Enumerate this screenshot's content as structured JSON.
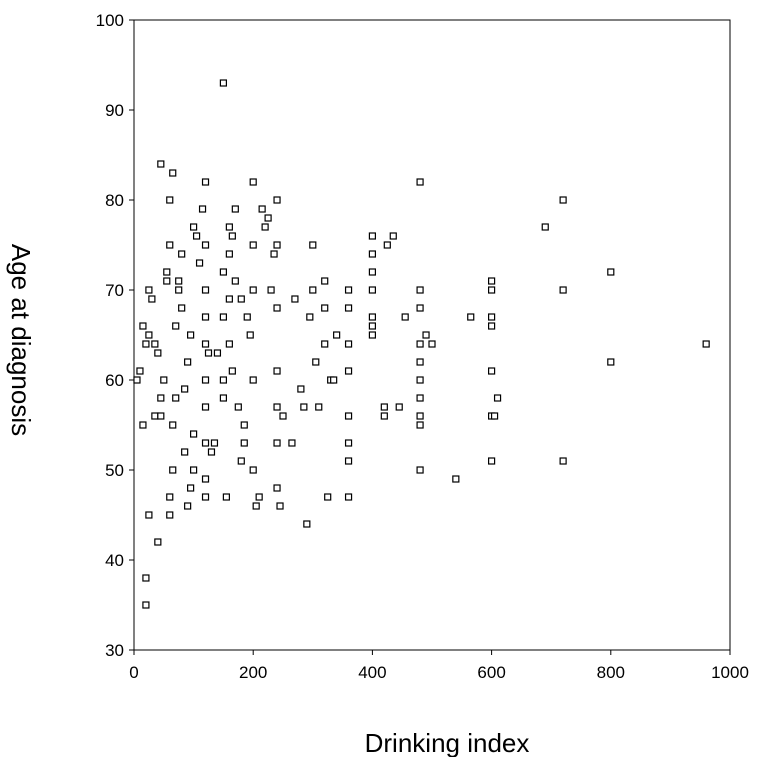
{
  "chart_data": {
    "type": "scatter",
    "title": "",
    "xlabel": "Drinking index",
    "ylabel": "Age at diagnosis",
    "xlim": [
      0,
      1000
    ],
    "ylim": [
      30,
      100
    ],
    "xticks": [
      "0",
      "200",
      "400",
      "600",
      "800",
      "1000"
    ],
    "yticks": [
      "30",
      "40",
      "50",
      "60",
      "70",
      "80",
      "90",
      "100"
    ],
    "grid": false,
    "marker": "hollow-square",
    "marker_color": "#000000",
    "points": [
      [
        20,
        35
      ],
      [
        20,
        38
      ],
      [
        25,
        45
      ],
      [
        40,
        42
      ],
      [
        45,
        84
      ],
      [
        65,
        83
      ],
      [
        60,
        80
      ],
      [
        10,
        61
      ],
      [
        15,
        66
      ],
      [
        20,
        64
      ],
      [
        25,
        70
      ],
      [
        30,
        69
      ],
      [
        35,
        56
      ],
      [
        40,
        63
      ],
      [
        45,
        58
      ],
      [
        50,
        60
      ],
      [
        55,
        72
      ],
      [
        60,
        75
      ],
      [
        65,
        55
      ],
      [
        70,
        66
      ],
      [
        75,
        71
      ],
      [
        80,
        68
      ],
      [
        85,
        59
      ],
      [
        90,
        62
      ],
      [
        95,
        48
      ],
      [
        100,
        50
      ],
      [
        5,
        60
      ],
      [
        15,
        55
      ],
      [
        25,
        65
      ],
      [
        35,
        64
      ],
      [
        45,
        56
      ],
      [
        55,
        71
      ],
      [
        65,
        50
      ],
      [
        75,
        70
      ],
      [
        85,
        52
      ],
      [
        95,
        65
      ],
      [
        100,
        77
      ],
      [
        60,
        45
      ],
      [
        60,
        47
      ],
      [
        70,
        58
      ],
      [
        80,
        74
      ],
      [
        90,
        46
      ],
      [
        100,
        54
      ],
      [
        105,
        76
      ],
      [
        110,
        73
      ],
      [
        115,
        79
      ],
      [
        120,
        82
      ],
      [
        120,
        75
      ],
      [
        120,
        70
      ],
      [
        120,
        67
      ],
      [
        120,
        64
      ],
      [
        120,
        60
      ],
      [
        120,
        57
      ],
      [
        120,
        53
      ],
      [
        120,
        49
      ],
      [
        120,
        47
      ],
      [
        125,
        63
      ],
      [
        130,
        52
      ],
      [
        135,
        53
      ],
      [
        140,
        63
      ],
      [
        150,
        93
      ],
      [
        150,
        72
      ],
      [
        150,
        67
      ],
      [
        150,
        60
      ],
      [
        150,
        58
      ],
      [
        155,
        47
      ],
      [
        160,
        77
      ],
      [
        160,
        74
      ],
      [
        160,
        69
      ],
      [
        160,
        64
      ],
      [
        165,
        76
      ],
      [
        165,
        61
      ],
      [
        170,
        79
      ],
      [
        170,
        71
      ],
      [
        175,
        57
      ],
      [
        180,
        69
      ],
      [
        180,
        51
      ],
      [
        185,
        55
      ],
      [
        185,
        53
      ],
      [
        190,
        67
      ],
      [
        195,
        65
      ],
      [
        200,
        82
      ],
      [
        200,
        75
      ],
      [
        200,
        70
      ],
      [
        200,
        60
      ],
      [
        200,
        50
      ],
      [
        205,
        46
      ],
      [
        210,
        47
      ],
      [
        215,
        79
      ],
      [
        220,
        77
      ],
      [
        225,
        78
      ],
      [
        230,
        70
      ],
      [
        235,
        74
      ],
      [
        240,
        80
      ],
      [
        240,
        75
      ],
      [
        240,
        68
      ],
      [
        240,
        61
      ],
      [
        240,
        57
      ],
      [
        240,
        53
      ],
      [
        240,
        48
      ],
      [
        245,
        46
      ],
      [
        250,
        56
      ],
      [
        265,
        53
      ],
      [
        270,
        69
      ],
      [
        280,
        59
      ],
      [
        285,
        57
      ],
      [
        290,
        44
      ],
      [
        295,
        67
      ],
      [
        300,
        75
      ],
      [
        300,
        70
      ],
      [
        305,
        62
      ],
      [
        310,
        57
      ],
      [
        320,
        71
      ],
      [
        320,
        68
      ],
      [
        320,
        64
      ],
      [
        325,
        47
      ],
      [
        330,
        60
      ],
      [
        335,
        60
      ],
      [
        340,
        65
      ],
      [
        360,
        70
      ],
      [
        360,
        68
      ],
      [
        360,
        64
      ],
      [
        360,
        61
      ],
      [
        360,
        56
      ],
      [
        360,
        53
      ],
      [
        360,
        51
      ],
      [
        360,
        47
      ],
      [
        400,
        76
      ],
      [
        400,
        74
      ],
      [
        400,
        72
      ],
      [
        400,
        70
      ],
      [
        400,
        67
      ],
      [
        400,
        66
      ],
      [
        400,
        65
      ],
      [
        420,
        57
      ],
      [
        420,
        56
      ],
      [
        425,
        75
      ],
      [
        435,
        76
      ],
      [
        445,
        57
      ],
      [
        455,
        67
      ],
      [
        480,
        82
      ],
      [
        480,
        70
      ],
      [
        480,
        68
      ],
      [
        480,
        64
      ],
      [
        480,
        62
      ],
      [
        480,
        60
      ],
      [
        480,
        58
      ],
      [
        480,
        56
      ],
      [
        480,
        55
      ],
      [
        480,
        50
      ],
      [
        490,
        65
      ],
      [
        500,
        64
      ],
      [
        540,
        49
      ],
      [
        565,
        67
      ],
      [
        600,
        71
      ],
      [
        600,
        70
      ],
      [
        600,
        67
      ],
      [
        600,
        66
      ],
      [
        600,
        61
      ],
      [
        600,
        56
      ],
      [
        600,
        51
      ],
      [
        605,
        56
      ],
      [
        610,
        58
      ],
      [
        690,
        77
      ],
      [
        720,
        80
      ],
      [
        720,
        70
      ],
      [
        720,
        51
      ],
      [
        800,
        72
      ],
      [
        800,
        62
      ],
      [
        960,
        64
      ]
    ]
  }
}
